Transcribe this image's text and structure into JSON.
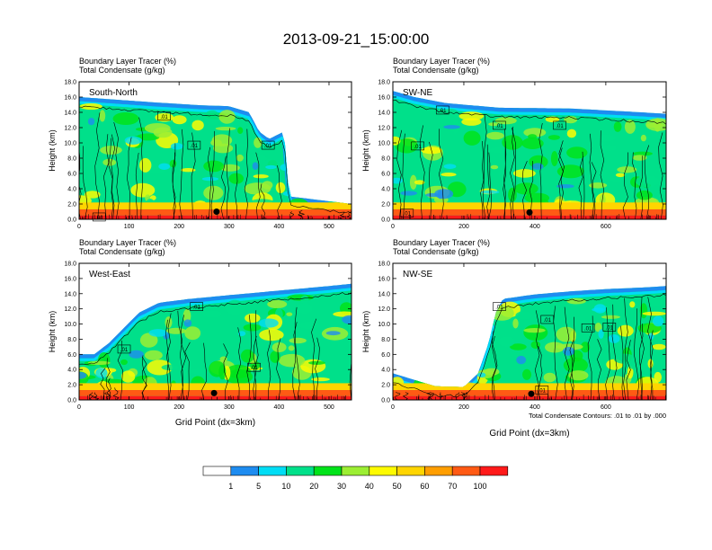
{
  "figure": {
    "title": "2013-09-21_15:00:00",
    "footnote": "Total Condensate Contours: .01 to .01 by .000"
  },
  "chart_data": [
    {
      "type": "heatmap",
      "name": "South-North",
      "subtitle_line1": "Boundary Layer Tracer   (%)",
      "subtitle_line2": "Total Condensate   (g/kg)",
      "ylabel": "Height (km)",
      "xlabel": "",
      "xlim": [
        0,
        545
      ],
      "ylim": [
        0,
        18
      ],
      "xticks": [
        0,
        100,
        200,
        300,
        400,
        500
      ],
      "xtick_labels": [
        "0",
        "100",
        "200",
        "300",
        "400",
        "500"
      ],
      "yticks": [
        0,
        2,
        4,
        6,
        8,
        10,
        12,
        14,
        16,
        18
      ],
      "ytick_labels": [
        "0.0",
        "2.0",
        "4.0",
        "6.0",
        "8.0",
        "10.0",
        "12.0",
        "14.0",
        "16.0",
        "18.0"
      ],
      "contour_labels": [
        {
          "text": ".01",
          "x": 40,
          "y": 0.3
        },
        {
          "text": ".01",
          "x": 170,
          "y": 13.5
        },
        {
          "text": ".01",
          "x": 230,
          "y": 9.7
        },
        {
          "text": ".01",
          "x": 378,
          "y": 9.7
        }
      ],
      "marker": {
        "x": 275,
        "y": 1.0
      },
      "profile": {
        "x": [
          0,
          150,
          200,
          250,
          300,
          340,
          360,
          380,
          410,
          420,
          545
        ],
        "top": [
          16,
          15.3,
          15.1,
          14.9,
          14.8,
          14.0,
          11.5,
          10.5,
          11.5,
          3,
          2
        ]
      }
    },
    {
      "type": "heatmap",
      "name": "SW-NE",
      "subtitle_line1": "Boundary Layer Tracer   (%)",
      "subtitle_line2": "Total Condensate   (g/kg)",
      "ylabel": "Height (km)",
      "xlabel": "",
      "xlim": [
        0,
        770
      ],
      "ylim": [
        0,
        18
      ],
      "xticks": [
        0,
        200,
        400,
        600
      ],
      "xtick_labels": [
        "0",
        "200",
        "400",
        "600"
      ],
      "yticks": [
        0,
        2,
        4,
        6,
        8,
        10,
        12,
        14,
        16,
        18
      ],
      "ytick_labels": [
        "0.0",
        "2.0",
        "4.0",
        "6.0",
        "8.0",
        "10.0",
        "12.0",
        "14.0",
        "16.0",
        "18.0"
      ],
      "contour_labels": [
        {
          "text": ".01",
          "x": 140,
          "y": 14.3
        },
        {
          "text": ".01",
          "x": 300,
          "y": 12.3
        },
        {
          "text": ".01",
          "x": 470,
          "y": 12.3
        },
        {
          "text": ".01",
          "x": 70,
          "y": 9.6
        },
        {
          "text": ".01",
          "x": 40,
          "y": 0.8
        }
      ],
      "marker": {
        "x": 385,
        "y": 0.9
      },
      "profile": {
        "x": [
          0,
          60,
          150,
          300,
          500,
          700,
          770
        ],
        "top": [
          16.8,
          16.0,
          15.2,
          14.6,
          14.5,
          14.0,
          13.8
        ]
      }
    },
    {
      "type": "heatmap",
      "name": "West-East",
      "subtitle_line1": "Boundary Layer Tracer   (%)",
      "subtitle_line2": "Total Condensate   (g/kg)",
      "ylabel": "Height (km)",
      "xlabel": "Grid Point (dx=3km)",
      "xlim": [
        0,
        545
      ],
      "ylim": [
        0,
        18
      ],
      "xticks": [
        0,
        100,
        200,
        300,
        400,
        500
      ],
      "xtick_labels": [
        "0",
        "100",
        "200",
        "300",
        "400",
        "500"
      ],
      "yticks": [
        0,
        2,
        4,
        6,
        8,
        10,
        12,
        14,
        16,
        18
      ],
      "ytick_labels": [
        "0.0",
        "2.0",
        "4.0",
        "6.0",
        "8.0",
        "10.0",
        "12.0",
        "14.0",
        "16.0",
        "18.0"
      ],
      "contour_labels": [
        {
          "text": ".01",
          "x": 235,
          "y": 12.3
        },
        {
          "text": ".01",
          "x": 90,
          "y": 6.7
        },
        {
          "text": ".01",
          "x": 350,
          "y": 4.3
        }
      ],
      "marker": {
        "x": 270,
        "y": 0.9
      },
      "profile": {
        "x": [
          0,
          30,
          60,
          90,
          120,
          160,
          220,
          300,
          400,
          500,
          545
        ],
        "top": [
          6,
          6,
          7.5,
          9.5,
          11.5,
          12.8,
          13.3,
          13.8,
          14.4,
          15.0,
          15.3
        ]
      }
    },
    {
      "type": "heatmap",
      "name": "NW-SE",
      "subtitle_line1": "Boundary Layer Tracer   (%)",
      "subtitle_line2": "Total Condensate   (g/kg)",
      "ylabel": "Height (km)",
      "xlabel": "Grid Point (dx=3km)",
      "xlim": [
        0,
        770
      ],
      "ylim": [
        0,
        18
      ],
      "xticks": [
        0,
        200,
        400,
        600
      ],
      "xtick_labels": [
        "0",
        "200",
        "400",
        "600"
      ],
      "yticks": [
        0,
        2,
        4,
        6,
        8,
        10,
        12,
        14,
        16,
        18
      ],
      "ytick_labels": [
        "0.0",
        "2.0",
        "4.0",
        "6.0",
        "8.0",
        "10.0",
        "12.0",
        "14.0",
        "16.0",
        "18.0"
      ],
      "contour_labels": [
        {
          "text": ".01",
          "x": 300,
          "y": 12.3
        },
        {
          "text": ".01",
          "x": 435,
          "y": 10.6
        },
        {
          "text": ".01",
          "x": 550,
          "y": 9.5
        },
        {
          "text": ".01",
          "x": 610,
          "y": 9.6
        },
        {
          "text": ".01",
          "x": 420,
          "y": 1.3
        }
      ],
      "marker": {
        "x": 390,
        "y": 0.8
      },
      "profile": {
        "x": [
          0,
          120,
          200,
          240,
          270,
          290,
          310,
          400,
          500,
          600,
          700,
          770
        ],
        "top": [
          3.5,
          1.8,
          1.7,
          3.5,
          7.5,
          11.5,
          13.3,
          13.9,
          14.3,
          14.6,
          14.8,
          15.0
        ]
      }
    }
  ],
  "colorbar": {
    "colors": [
      "#ffffff",
      "#1e8cf0",
      "#00ddf5",
      "#00e08a",
      "#00e31a",
      "#9cee33",
      "#fefb00",
      "#ffd500",
      "#ff9e00",
      "#ff5a14",
      "#ff1a1a"
    ],
    "labels": [
      "1",
      "5",
      "10",
      "20",
      "30",
      "40",
      "50",
      "60",
      "70",
      "100"
    ]
  }
}
